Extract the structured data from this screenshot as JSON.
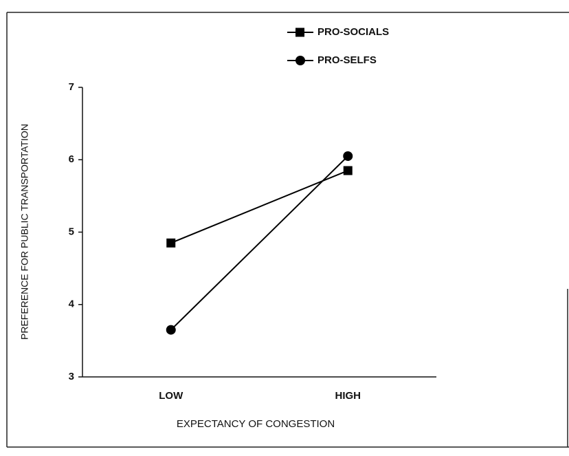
{
  "chart_data": {
    "type": "line",
    "x_label": "EXPECTANCY OF CONGESTION",
    "y_label": "PREFERENCE FOR PUBLIC TRANSPORTATION",
    "categories": [
      "LOW",
      "HIGH"
    ],
    "series": [
      {
        "name": "PRO-SOCIALS",
        "color": "#000000",
        "marker": "square",
        "values": [
          4.85,
          5.85
        ]
      },
      {
        "name": "PRO-SELFS",
        "color": "#000000",
        "marker": "circle",
        "values": [
          3.65,
          6.05
        ]
      }
    ],
    "ylim": [
      3,
      7
    ],
    "yticks": [
      3,
      4,
      5,
      6,
      7
    ],
    "grid": false,
    "legend": "top-right"
  }
}
